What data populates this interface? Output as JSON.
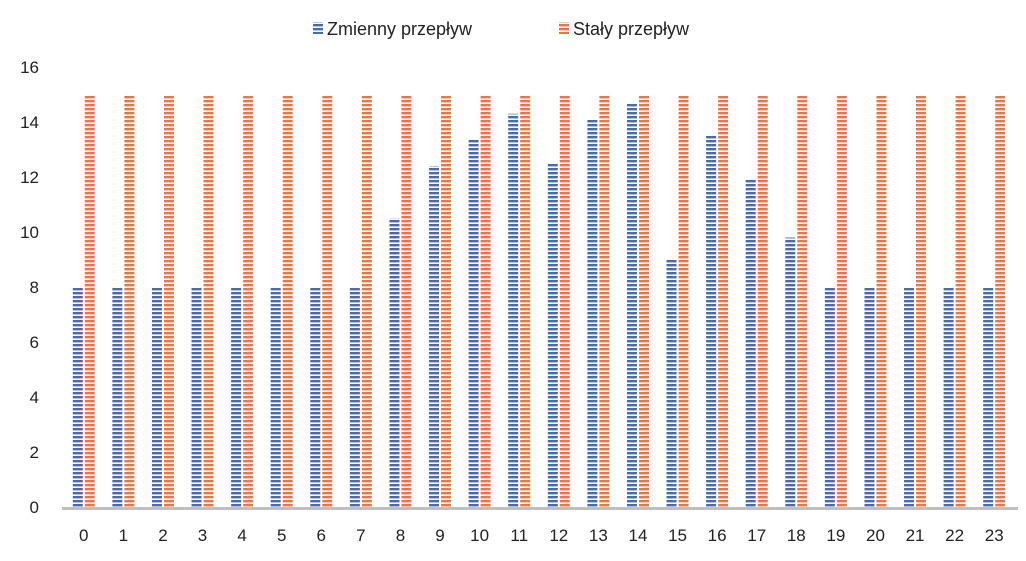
{
  "chart_data": {
    "type": "bar",
    "title": "",
    "xlabel": "",
    "ylabel": "",
    "ylim": [
      0,
      16
    ],
    "yticks": [
      0,
      2,
      4,
      6,
      8,
      10,
      12,
      14,
      16
    ],
    "grid": false,
    "legend_position": "top-center",
    "categories": [
      "0",
      "1",
      "2",
      "3",
      "4",
      "5",
      "6",
      "7",
      "8",
      "9",
      "10",
      "11",
      "12",
      "13",
      "14",
      "15",
      "16",
      "17",
      "18",
      "19",
      "20",
      "21",
      "22",
      "23"
    ],
    "series": [
      {
        "name": "Zmienny przepływ",
        "color": "#4a6aa8",
        "values": [
          8,
          8,
          8,
          8,
          8,
          8,
          8,
          8,
          10.5,
          12.4,
          13.4,
          14.3,
          12.5,
          14.1,
          14.7,
          9,
          13.5,
          11.9,
          9.8,
          8,
          8,
          8,
          8,
          8
        ]
      },
      {
        "name": "Stały przepływ",
        "color": "#e2794a",
        "values": [
          15,
          15,
          15,
          15,
          15,
          15,
          15,
          15,
          15,
          15,
          15,
          15,
          15,
          15,
          15,
          15,
          15,
          15,
          15,
          15,
          15,
          15,
          15,
          15
        ]
      }
    ]
  }
}
